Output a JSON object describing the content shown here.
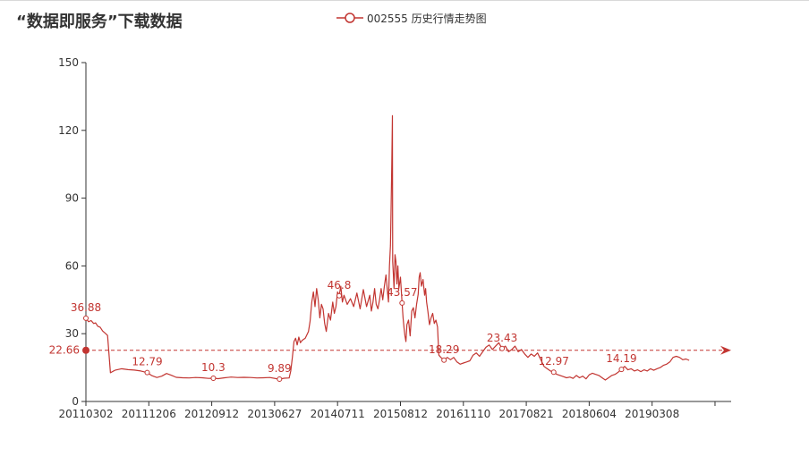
{
  "page": {
    "title": "“数据即服务”下载数据"
  },
  "legend": {
    "label": "002555 历史行情走势图",
    "color": "#c23531"
  },
  "chart_data": {
    "type": "line",
    "series": [
      {
        "name": "002555 历史行情走势图"
      }
    ],
    "x_tick_labels": [
      "20110302",
      "20111206",
      "20120912",
      "20130627",
      "20140711",
      "20150812",
      "20161110",
      "20170821",
      "20180604",
      "20190308"
    ],
    "y_ticks": [
      0,
      30,
      60,
      90,
      120,
      150
    ],
    "ylim": [
      0,
      150
    ],
    "x_index_range": [
      0,
      2000
    ],
    "points": [
      [
        0,
        36.88
      ],
      [
        8,
        35.3
      ],
      [
        16,
        35.8
      ],
      [
        24,
        34.5
      ],
      [
        30,
        34.8
      ],
      [
        37,
        33.3
      ],
      [
        44,
        32.9
      ],
      [
        52,
        31.2
      ],
      [
        60,
        30.2
      ],
      [
        67,
        29.2
      ],
      [
        76,
        12.7
      ],
      [
        90,
        13.8
      ],
      [
        110,
        14.5
      ],
      [
        130,
        14.1
      ],
      [
        150,
        13.9
      ],
      [
        170,
        13.5
      ],
      [
        190,
        12.79
      ],
      [
        205,
        11.4
      ],
      [
        220,
        10.6
      ],
      [
        235,
        11.2
      ],
      [
        250,
        12.4
      ],
      [
        265,
        11.6
      ],
      [
        280,
        10.7
      ],
      [
        300,
        10.5
      ],
      [
        320,
        10.4
      ],
      [
        340,
        10.6
      ],
      [
        360,
        10.5
      ],
      [
        380,
        10.2
      ],
      [
        395,
        10.3
      ],
      [
        410,
        10.1
      ],
      [
        430,
        10.5
      ],
      [
        450,
        10.8
      ],
      [
        470,
        10.6
      ],
      [
        490,
        10.7
      ],
      [
        510,
        10.6
      ],
      [
        530,
        10.4
      ],
      [
        550,
        10.5
      ],
      [
        570,
        10.6
      ],
      [
        590,
        10.1
      ],
      [
        600,
        9.89
      ],
      [
        615,
        10.3
      ],
      [
        630,
        10.4
      ],
      [
        635,
        13.5
      ],
      [
        640,
        19.5
      ],
      [
        645,
        26.5
      ],
      [
        650,
        28.0
      ],
      [
        655,
        25.0
      ],
      [
        660,
        28.5
      ],
      [
        665,
        26.0
      ],
      [
        670,
        27.0
      ],
      [
        680,
        28.0
      ],
      [
        690,
        31.0
      ],
      [
        695,
        35.5
      ],
      [
        700,
        44.0
      ],
      [
        705,
        48.5
      ],
      [
        710,
        42.0
      ],
      [
        715,
        50.0
      ],
      [
        720,
        45.0
      ],
      [
        725,
        37.0
      ],
      [
        730,
        43.0
      ],
      [
        735,
        41.0
      ],
      [
        740,
        34.5
      ],
      [
        745,
        31.0
      ],
      [
        752,
        39.0
      ],
      [
        758,
        36.0
      ],
      [
        765,
        44.0
      ],
      [
        770,
        39.0
      ],
      [
        775,
        42.0
      ],
      [
        780,
        48.5
      ],
      [
        785,
        46.8
      ],
      [
        790,
        51.0
      ],
      [
        795,
        44.0
      ],
      [
        800,
        47.0
      ],
      [
        810,
        43.0
      ],
      [
        820,
        45.5
      ],
      [
        830,
        42.0
      ],
      [
        840,
        48.0
      ],
      [
        850,
        41.0
      ],
      [
        860,
        49.5
      ],
      [
        870,
        42.0
      ],
      [
        880,
        47.0
      ],
      [
        885,
        40.0
      ],
      [
        890,
        44.0
      ],
      [
        895,
        50.0
      ],
      [
        900,
        43.0
      ],
      [
        905,
        41.0
      ],
      [
        910,
        45.0
      ],
      [
        915,
        50.0
      ],
      [
        920,
        45.0
      ],
      [
        925,
        51.0
      ],
      [
        930,
        56.0
      ],
      [
        935,
        48.0
      ],
      [
        938,
        44.0
      ],
      [
        941,
        60.0
      ],
      [
        944,
        69.0
      ],
      [
        946,
        85.0
      ],
      [
        948,
        105.0
      ],
      [
        950,
        126.5
      ],
      [
        951,
        62.0
      ],
      [
        953,
        56.0
      ],
      [
        955,
        50.0
      ],
      [
        958,
        65.0
      ],
      [
        961,
        62.0
      ],
      [
        964,
        52.0
      ],
      [
        967,
        60.0
      ],
      [
        970,
        50.0
      ],
      [
        975,
        55.0
      ],
      [
        980,
        43.57
      ],
      [
        983,
        37.0
      ],
      [
        986,
        32.5
      ],
      [
        989,
        29.0
      ],
      [
        992,
        26.5
      ],
      [
        995,
        34.0
      ],
      [
        1000,
        36.0
      ],
      [
        1005,
        29.0
      ],
      [
        1010,
        40.0
      ],
      [
        1015,
        41.5
      ],
      [
        1020,
        37.0
      ],
      [
        1025,
        43.0
      ],
      [
        1030,
        47.5
      ],
      [
        1033,
        55.0
      ],
      [
        1036,
        57.0
      ],
      [
        1040,
        51.0
      ],
      [
        1045,
        54.0
      ],
      [
        1050,
        47.0
      ],
      [
        1053,
        50.0
      ],
      [
        1056,
        44.0
      ],
      [
        1060,
        40.0
      ],
      [
        1065,
        34.0
      ],
      [
        1070,
        37.0
      ],
      [
        1075,
        39.0
      ],
      [
        1080,
        34.5
      ],
      [
        1085,
        36.0
      ],
      [
        1090,
        33.0
      ],
      [
        1094,
        20.5
      ],
      [
        1100,
        19.5
      ],
      [
        1110,
        18.29
      ],
      [
        1120,
        19.5
      ],
      [
        1130,
        18.5
      ],
      [
        1140,
        19.5
      ],
      [
        1150,
        17.5
      ],
      [
        1160,
        16.5
      ],
      [
        1170,
        17.0
      ],
      [
        1180,
        17.5
      ],
      [
        1190,
        18.0
      ],
      [
        1200,
        20.5
      ],
      [
        1210,
        21.5
      ],
      [
        1220,
        20.0
      ],
      [
        1230,
        22.0
      ],
      [
        1240,
        24.0
      ],
      [
        1250,
        25.0
      ],
      [
        1260,
        23.0
      ],
      [
        1270,
        24.5
      ],
      [
        1280,
        26.0
      ],
      [
        1290,
        23.43
      ],
      [
        1300,
        24.5
      ],
      [
        1310,
        22.0
      ],
      [
        1320,
        23.0
      ],
      [
        1330,
        24.5
      ],
      [
        1340,
        22.0
      ],
      [
        1350,
        23.0
      ],
      [
        1360,
        21.0
      ],
      [
        1370,
        19.5
      ],
      [
        1380,
        21.0
      ],
      [
        1390,
        20.0
      ],
      [
        1400,
        21.5
      ],
      [
        1410,
        18.5
      ],
      [
        1420,
        15.5
      ],
      [
        1430,
        14.5
      ],
      [
        1440,
        13.5
      ],
      [
        1450,
        12.97
      ],
      [
        1460,
        12.0
      ],
      [
        1470,
        11.5
      ],
      [
        1480,
        11.0
      ],
      [
        1490,
        10.5
      ],
      [
        1500,
        10.8
      ],
      [
        1510,
        10.2
      ],
      [
        1520,
        11.5
      ],
      [
        1530,
        10.5
      ],
      [
        1540,
        11.2
      ],
      [
        1550,
        10.0
      ],
      [
        1560,
        11.8
      ],
      [
        1570,
        12.5
      ],
      [
        1580,
        12.0
      ],
      [
        1590,
        11.5
      ],
      [
        1600,
        10.5
      ],
      [
        1610,
        9.5
      ],
      [
        1620,
        10.5
      ],
      [
        1630,
        11.5
      ],
      [
        1640,
        12.0
      ],
      [
        1650,
        13.0
      ],
      [
        1660,
        14.19
      ],
      [
        1670,
        15.5
      ],
      [
        1680,
        14.0
      ],
      [
        1690,
        14.5
      ],
      [
        1700,
        13.5
      ],
      [
        1710,
        14.0
      ],
      [
        1720,
        13.2
      ],
      [
        1730,
        14.0
      ],
      [
        1740,
        13.5
      ],
      [
        1750,
        14.5
      ],
      [
        1760,
        13.8
      ],
      [
        1770,
        14.5
      ],
      [
        1780,
        15.0
      ],
      [
        1790,
        16.0
      ],
      [
        1800,
        16.5
      ],
      [
        1810,
        17.5
      ],
      [
        1820,
        19.5
      ],
      [
        1830,
        20.0
      ],
      [
        1840,
        19.5
      ],
      [
        1850,
        18.5
      ],
      [
        1860,
        18.8
      ],
      [
        1870,
        18.2
      ]
    ],
    "markers": [
      {
        "label": "36.88",
        "i": 0,
        "value": 36.88
      },
      {
        "label": "12.79",
        "i": 190,
        "value": 12.79
      },
      {
        "label": "10.3",
        "i": 395,
        "value": 10.3
      },
      {
        "label": "9.89",
        "i": 600,
        "value": 9.89
      },
      {
        "label": "46.8",
        "i": 785,
        "value": 46.8
      },
      {
        "label": "43.57",
        "i": 980,
        "value": 43.57
      },
      {
        "label": "18.29",
        "i": 1110,
        "value": 18.29
      },
      {
        "label": "23.43",
        "i": 1290,
        "value": 23.43
      },
      {
        "label": "12.97",
        "i": 1450,
        "value": 12.97
      },
      {
        "label": "14.19",
        "i": 1660,
        "value": 14.19
      }
    ],
    "average": {
      "label": "22.66",
      "value": 22.66
    },
    "line_color": "#c23531",
    "grid": false
  }
}
